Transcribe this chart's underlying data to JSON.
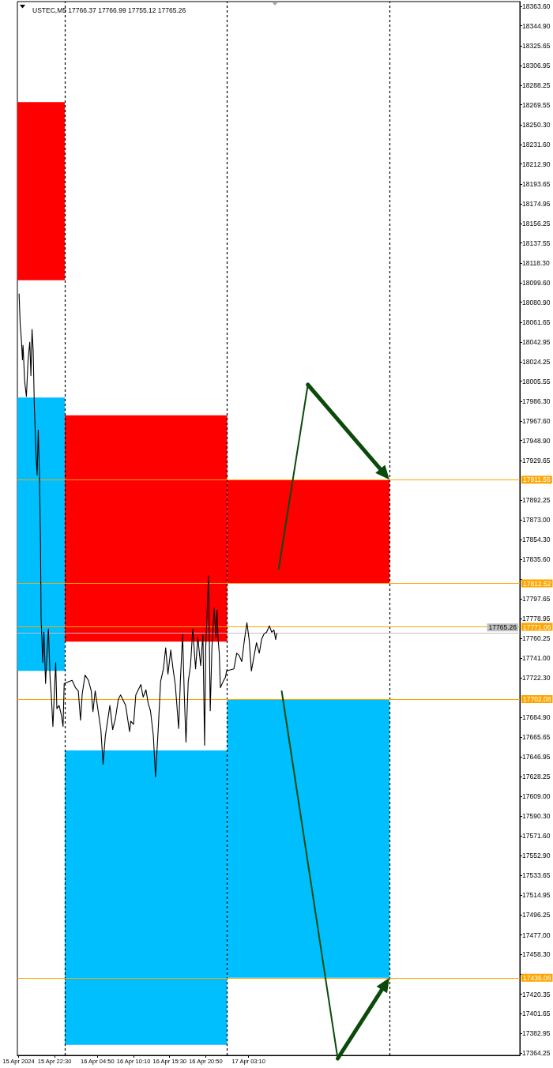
{
  "chart_data": {
    "type": "line",
    "title": "USTEC,M5 17766.37 17766.99 17755.12 17765.26",
    "xlim": [
      "2024-04-15T17:00",
      "2024-04-18T19:15"
    ],
    "ylim": [
      17362,
      18368
    ],
    "xticks": [
      {
        "value": "2024-04-15T17:10",
        "label": "15 Apr 2024"
      },
      {
        "value": "2024-04-15T22:30",
        "label": "15 Apr 22:30"
      },
      {
        "value": "2024-04-16T04:50",
        "label": "16 Apr 04:50"
      },
      {
        "value": "2024-04-16T10:10",
        "label": "16 Apr 10:10"
      },
      {
        "value": "2024-04-16T15:30",
        "label": "16 Apr 15:30"
      },
      {
        "value": "2024-04-16T20:50",
        "label": "16 Apr 20:50"
      },
      {
        "value": "2024-04-17T03:10",
        "label": "17 Apr 03:10"
      }
    ],
    "yticks": [
      {
        "value": 18363.6,
        "label": "18363.60"
      },
      {
        "value": 18344.9,
        "label": "18344.90"
      },
      {
        "value": 18325.65,
        "label": "18325.65"
      },
      {
        "value": 18306.95,
        "label": "18306.95"
      },
      {
        "value": 18288.25,
        "label": "18288.25"
      },
      {
        "value": 18269.55,
        "label": "18269.55"
      },
      {
        "value": 18250.3,
        "label": "18250.30"
      },
      {
        "value": 18231.6,
        "label": "18231.60"
      },
      {
        "value": 18212.9,
        "label": "18212.90"
      },
      {
        "value": 18193.65,
        "label": "18193.65"
      },
      {
        "value": 18174.95,
        "label": "18174.95"
      },
      {
        "value": 18156.25,
        "label": "18156.25"
      },
      {
        "value": 18137.55,
        "label": "18137.55"
      },
      {
        "value": 18118.3,
        "label": "18118.30"
      },
      {
        "value": 18099.6,
        "label": "18099.60"
      },
      {
        "value": 18080.9,
        "label": "18080.90"
      },
      {
        "value": 18061.65,
        "label": "18061.65"
      },
      {
        "value": 18042.95,
        "label": "18042.95"
      },
      {
        "value": 18024.25,
        "label": "18024.25"
      },
      {
        "value": 18005.55,
        "label": "18005.55"
      },
      {
        "value": 17986.3,
        "label": "17986.30"
      },
      {
        "value": 17967.6,
        "label": "17967.60"
      },
      {
        "value": 17948.9,
        "label": "17948.90"
      },
      {
        "value": 17929.65,
        "label": "17929.65"
      },
      {
        "value": 17892.25,
        "label": "17892.25"
      },
      {
        "value": 17873,
        "label": "17873.00"
      },
      {
        "value": 17854.3,
        "label": "17854.30"
      },
      {
        "value": 17835.6,
        "label": "17835.60"
      },
      {
        "value": 17816.9,
        "label": null
      },
      {
        "value": 17797.65,
        "label": "17797.65"
      },
      {
        "value": 17778.95,
        "label": "17778.95"
      },
      {
        "value": 17760.25,
        "label": "17760.25"
      },
      {
        "value": 17741,
        "label": "17741.00"
      },
      {
        "value": 17722.3,
        "label": "17722.30"
      },
      {
        "value": 17684.9,
        "label": "17684.90"
      },
      {
        "value": 17665.65,
        "label": "17665.65"
      },
      {
        "value": 17646.95,
        "label": "17646.95"
      },
      {
        "value": 17628.25,
        "label": "17628.25"
      },
      {
        "value": 17609,
        "label": "17609.00"
      },
      {
        "value": 17590.3,
        "label": "17590.30"
      },
      {
        "value": 17571.6,
        "label": "17571.60"
      },
      {
        "value": 17552.9,
        "label": "17552.90"
      },
      {
        "value": 17533.65,
        "label": "17533.65"
      },
      {
        "value": 17514.95,
        "label": "17514.95"
      },
      {
        "value": 17496.25,
        "label": "17496.25"
      },
      {
        "value": 17477,
        "label": "17477.00"
      },
      {
        "value": 17458.3,
        "label": "17458.30"
      },
      {
        "value": 17439.6,
        "label": null
      },
      {
        "value": 17420.35,
        "label": "17420.35"
      },
      {
        "value": 17401.65,
        "label": "17401.65"
      },
      {
        "value": 17382.95,
        "label": "17382.95"
      },
      {
        "value": 17364.25,
        "label": "17364.25"
      }
    ],
    "series": [
      {
        "type": "area",
        "color": "#ff0000",
        "x": [
          "2024-04-15T17:00",
          "2024-04-16T00:00"
        ],
        "values": [
          null,
          null
        ],
        "lower": [
          18102,
          18102
        ],
        "upper": [
          18272,
          18272
        ]
      },
      {
        "type": "area",
        "color": "#00bfff",
        "x": [
          "2024-04-15T17:00",
          "2024-04-16T00:00"
        ],
        "values": [
          null,
          null
        ],
        "lower": [
          17729,
          17729
        ],
        "upper": [
          17990,
          17990
        ]
      },
      {
        "type": "area",
        "color": "#ff0000",
        "x": [
          "2024-04-16T00:00",
          "2024-04-17T00:00"
        ],
        "values": [
          null,
          null
        ],
        "lower": [
          17757,
          17757
        ],
        "upper": [
          17973,
          17973
        ]
      },
      {
        "type": "area",
        "color": "#00bfff",
        "x": [
          "2024-04-16T00:00",
          "2024-04-17T00:00"
        ],
        "values": [
          null,
          null
        ],
        "lower": [
          17372,
          17372
        ],
        "upper": [
          17653,
          17653
        ]
      },
      {
        "type": "area",
        "color": "#ff0000",
        "x": [
          "2024-04-17T00:00",
          "2024-04-18T00:00"
        ],
        "values": [
          null,
          null
        ],
        "lower": [
          17812.52,
          17812.52
        ],
        "upper": [
          17911.56,
          17911.56
        ]
      },
      {
        "type": "area",
        "color": "#00bfff",
        "x": [
          "2024-04-17T00:00",
          "2024-04-18T00:00"
        ],
        "values": [
          null,
          null
        ],
        "lower": [
          17436.06,
          17436.06
        ],
        "upper": [
          17702.08,
          17702.08
        ]
      },
      {
        "color": "#000000",
        "x": [
          "2024-04-15T17:15",
          "2024-04-15T17:25",
          "2024-04-15T17:35",
          "2024-04-15T17:45",
          "2024-04-15T17:50",
          "2024-04-15T18:05",
          "2024-04-15T18:20",
          "2024-04-15T18:35",
          "2024-04-15T18:50",
          "2024-04-15T19:00",
          "2024-04-15T19:10",
          "2024-04-15T19:20",
          "2024-04-15T19:30",
          "2024-04-15T19:45",
          "2024-04-15T19:55",
          "2024-04-15T20:05",
          "2024-04-15T20:15",
          "2024-04-15T20:25",
          "2024-04-15T20:30",
          "2024-04-15T20:45",
          "2024-04-15T20:55",
          "2024-04-15T21:10",
          "2024-04-15T21:25",
          "2024-04-15T21:35",
          "2024-04-15T21:50",
          "2024-04-15T22:00",
          "2024-04-15T22:15",
          "2024-04-15T22:30",
          "2024-04-15T22:40",
          "2024-04-15T22:50",
          "2024-04-15T23:10",
          "2024-04-15T23:30",
          "2024-04-15T23:45",
          "2024-04-15T23:55",
          "2024-04-16T01:05",
          "2024-04-16T01:35",
          "2024-04-16T02:00",
          "2024-04-16T02:20",
          "2024-04-16T02:35",
          "2024-04-16T03:00",
          "2024-04-16T03:30",
          "2024-04-16T03:55",
          "2024-04-16T04:10",
          "2024-04-16T04:30",
          "2024-04-16T05:20",
          "2024-04-16T05:40",
          "2024-04-16T06:00",
          "2024-04-16T06:40",
          "2024-04-16T07:05",
          "2024-04-16T07:30",
          "2024-04-16T07:55",
          "2024-04-16T08:15",
          "2024-04-16T09:00",
          "2024-04-16T09:35",
          "2024-04-16T09:45",
          "2024-04-16T10:10",
          "2024-04-16T10:30",
          "2024-04-16T11:15",
          "2024-04-16T11:35",
          "2024-04-16T12:00",
          "2024-04-16T12:20",
          "2024-04-16T12:40",
          "2024-04-16T13:05",
          "2024-04-16T13:25",
          "2024-04-16T13:50",
          "2024-04-16T14:10",
          "2024-04-16T14:35",
          "2024-04-16T14:55",
          "2024-04-16T15:15",
          "2024-04-16T15:40",
          "2024-04-16T16:00",
          "2024-04-16T16:20",
          "2024-04-16T16:50",
          "2024-04-16T17:05",
          "2024-04-16T17:25",
          "2024-04-16T17:40",
          "2024-04-16T17:55",
          "2024-04-16T18:15",
          "2024-04-16T18:35",
          "2024-04-16T18:55",
          "2024-04-16T19:20",
          "2024-04-16T19:40",
          "2024-04-16T20:05",
          "2024-04-16T20:25",
          "2024-04-16T20:40",
          "2024-04-16T20:50",
          "2024-04-16T21:15",
          "2024-04-16T21:30",
          "2024-04-16T21:45",
          "2024-04-16T22:05",
          "2024-04-16T22:20",
          "2024-04-16T22:30",
          "2024-04-16T22:40",
          "2024-04-16T22:50",
          "2024-04-16T23:00",
          "2024-04-16T23:25",
          "2024-04-16T23:45",
          "2024-04-16T23:55",
          "2024-04-17T01:00",
          "2024-04-17T01:25",
          "2024-04-17T01:45",
          "2024-04-17T02:10",
          "2024-04-17T02:30",
          "2024-04-17T02:55",
          "2024-04-17T03:15",
          "2024-04-17T03:35",
          "2024-04-17T04:00",
          "2024-04-17T04:20",
          "2024-04-17T04:45",
          "2024-04-17T05:05",
          "2024-04-17T05:25",
          "2024-04-17T05:50",
          "2024-04-17T06:15",
          "2024-04-17T06:35",
          "2024-04-17T06:55",
          "2024-04-17T07:10",
          "2024-04-17T07:20"
        ],
        "values": [
          18089,
          18060,
          18046,
          18026,
          18040,
          18005,
          17991,
          18026,
          18043,
          18011,
          18055,
          18035,
          17983,
          17936,
          17916,
          17959,
          17919,
          17852,
          17780,
          17737,
          17766,
          17717,
          17751,
          17769,
          17722,
          17707,
          17676,
          17713,
          17737,
          17693,
          17696,
          17687,
          17676,
          17717,
          17720,
          17713,
          17710,
          17682,
          17707,
          17725,
          17720,
          17710,
          17690,
          17710,
          17673,
          17640,
          17667,
          17696,
          17673,
          17684,
          17702,
          17706,
          17696,
          17671,
          17681,
          17678,
          17706,
          17716,
          17704,
          17711,
          17698,
          17691,
          17668,
          17628,
          17676,
          17719,
          17731,
          17751,
          17726,
          17749,
          17731,
          17716,
          17674,
          17719,
          17764,
          17706,
          17661,
          17719,
          17734,
          17769,
          17731,
          17761,
          17734,
          17764,
          17658,
          17751,
          17820,
          17691,
          17751,
          17789,
          17761,
          17787,
          17759,
          17746,
          17713,
          17719,
          17723,
          17729,
          17731,
          17746,
          17744,
          17738,
          17756,
          17775,
          17759,
          17729,
          17744,
          17756,
          17746,
          17759,
          17764,
          17766,
          17772,
          17766,
          17768,
          17759,
          17765
        ]
      }
    ],
    "ref_lines": [
      {
        "axis": "x",
        "value": "2024-04-16T00:00",
        "color": "#000000",
        "line_style": "dashed"
      },
      {
        "axis": "x",
        "value": "2024-04-17T00:00",
        "color": "#000000",
        "line_style": "dashed"
      },
      {
        "axis": "x",
        "value": "2024-04-18T00:00",
        "color": "#000000",
        "line_style": "dashed"
      },
      {
        "axis": "y",
        "value": 17911.56,
        "label": "17911.56",
        "color": "#ffa500"
      },
      {
        "axis": "y",
        "value": 17812.52,
        "label": "17812.52",
        "color": "#ffa500"
      },
      {
        "axis": "y",
        "value": 17771.06,
        "label": "17771.06",
        "color": "#ffa500"
      },
      {
        "axis": "y",
        "value": 17702.08,
        "label": "17702.08",
        "color": "#ffa500"
      },
      {
        "axis": "y",
        "value": 17436.06,
        "label": "17436.06",
        "color": "#ffa500"
      },
      {
        "axis": "y",
        "value": 17765.26,
        "label": "17765.26",
        "color": "#c0c0c0"
      }
    ]
  }
}
